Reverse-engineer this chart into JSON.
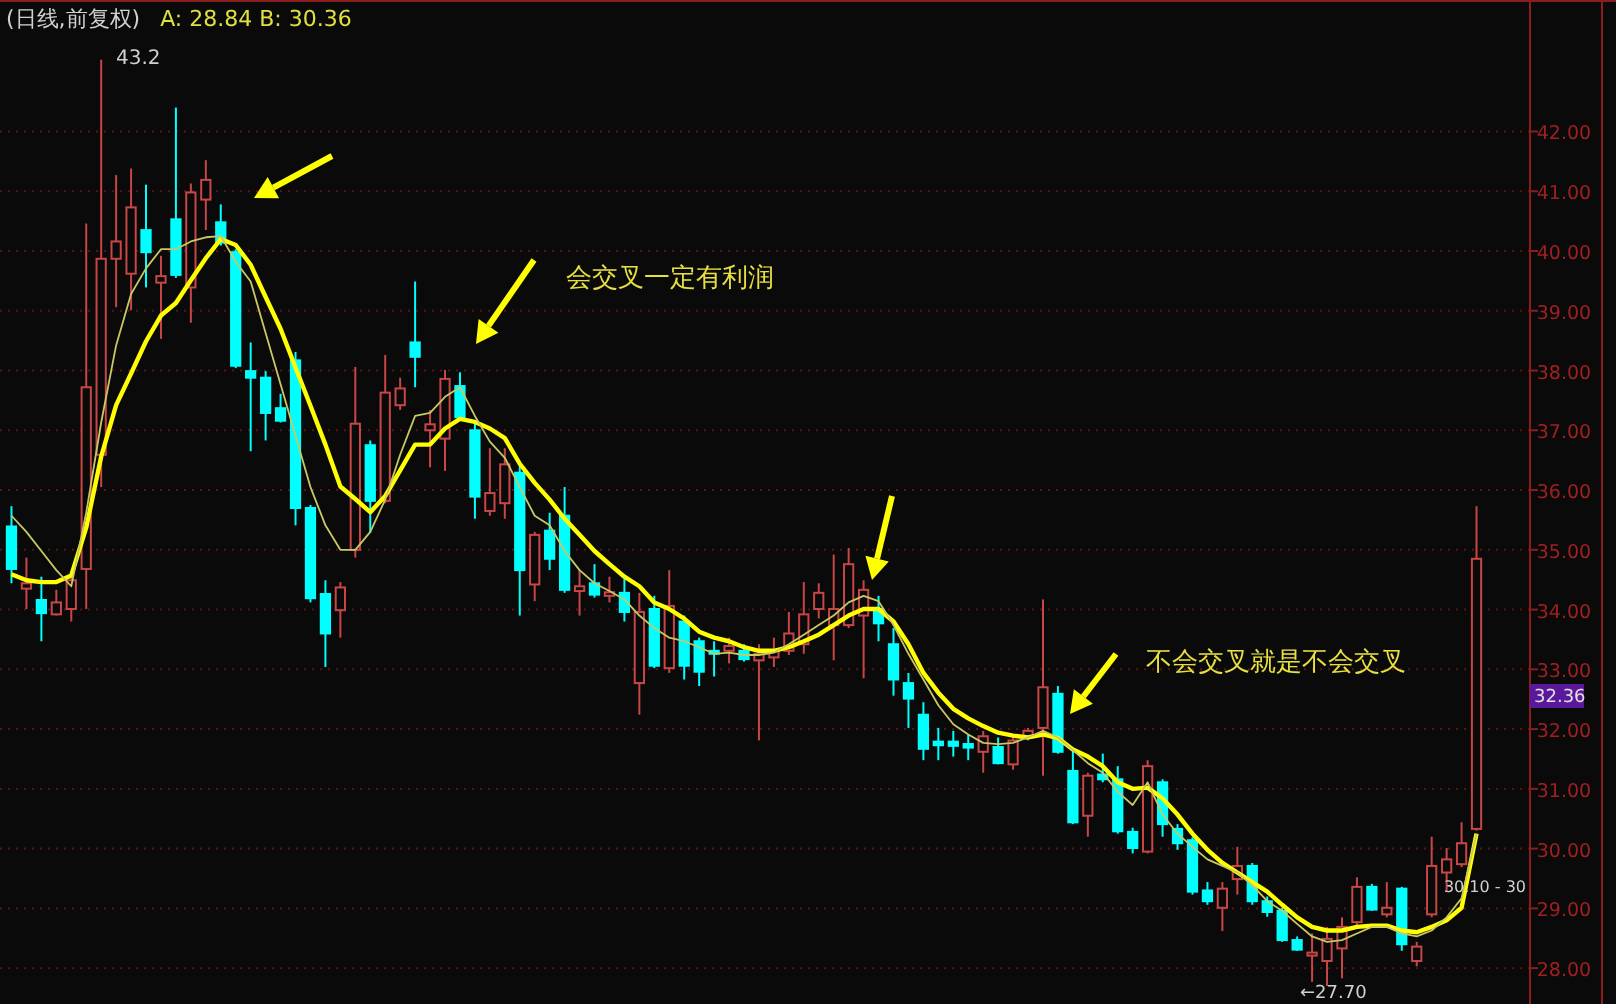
{
  "chart_data": {
    "type": "candlestick",
    "title": "(日线,前复权)",
    "subtitle": "A: 28.84 B: 30.36",
    "categories": [
      null,
      null,
      null,
      null,
      null,
      null,
      null,
      null,
      null,
      null,
      null,
      null,
      null,
      null,
      null,
      null,
      null,
      null,
      null,
      null,
      null,
      null,
      null,
      null,
      null,
      null,
      null,
      null,
      null,
      null,
      null,
      null,
      null,
      null,
      null,
      null,
      null,
      null,
      null,
      null,
      null,
      null,
      null,
      null,
      null,
      null,
      null,
      null,
      null,
      null,
      null,
      null,
      null,
      null,
      null,
      null,
      null,
      null,
      null,
      null,
      null,
      null,
      null,
      null,
      null,
      null,
      null,
      null,
      null,
      null,
      null,
      null,
      null,
      null,
      null,
      null,
      null,
      null,
      null,
      null,
      null,
      null,
      null,
      null,
      null,
      null,
      null,
      null,
      null,
      null,
      null,
      null,
      null,
      null,
      null,
      null,
      null,
      null,
      null
    ],
    "ohlc": [
      [
        35.39,
        35.73,
        34.44,
        34.68
      ],
      [
        34.35,
        34.87,
        34.01,
        34.44
      ],
      [
        34.16,
        34.55,
        33.47,
        33.94
      ],
      [
        33.92,
        34.33,
        33.9,
        34.12
      ],
      [
        34.01,
        34.6,
        33.8,
        34.49
      ],
      [
        34.68,
        40.46,
        34.01,
        37.72
      ],
      [
        36.59,
        43.2,
        36.05,
        39.87
      ],
      [
        39.87,
        41.27,
        39.06,
        40.16
      ],
      [
        39.62,
        41.38,
        39.01,
        40.73
      ],
      [
        40.35,
        41.11,
        39.39,
        39.98
      ],
      [
        39.47,
        39.92,
        38.53,
        39.58
      ],
      [
        40.53,
        42.4,
        39.55,
        39.6
      ],
      [
        39.39,
        41.13,
        38.8,
        40.98
      ],
      [
        40.86,
        41.52,
        40.35,
        41.19
      ],
      [
        40.48,
        40.78,
        40.09,
        40.14
      ],
      [
        39.98,
        40.03,
        38.04,
        38.08
      ],
      [
        37.99,
        38.47,
        36.65,
        37.88
      ],
      [
        37.88,
        37.99,
        36.83,
        37.29
      ],
      [
        37.37,
        37.61,
        37.13,
        37.16
      ],
      [
        38.17,
        38.31,
        35.41,
        35.7
      ],
      [
        35.7,
        35.75,
        34.12,
        34.19
      ],
      [
        34.26,
        34.49,
        33.04,
        33.6
      ],
      [
        33.99,
        34.46,
        33.53,
        34.37
      ],
      [
        35.0,
        38.06,
        34.87,
        37.11
      ],
      [
        36.75,
        36.83,
        35.28,
        35.82
      ],
      [
        35.82,
        38.26,
        35.78,
        37.63
      ],
      [
        37.42,
        37.88,
        37.34,
        37.7
      ],
      [
        38.47,
        39.49,
        37.72,
        38.23
      ],
      [
        37.0,
        37.34,
        36.38,
        37.1
      ],
      [
        36.86,
        38.01,
        36.32,
        37.86
      ],
      [
        37.74,
        37.97,
        37.18,
        37.22
      ],
      [
        37.0,
        37.15,
        35.52,
        35.89
      ],
      [
        35.65,
        36.7,
        35.57,
        35.95
      ],
      [
        35.78,
        36.7,
        35.52,
        36.43
      ],
      [
        36.29,
        36.43,
        33.9,
        34.66
      ],
      [
        34.42,
        35.3,
        34.14,
        35.25
      ],
      [
        35.32,
        35.62,
        34.66,
        34.85
      ],
      [
        35.57,
        36.05,
        34.28,
        34.33
      ],
      [
        34.31,
        34.66,
        33.9,
        34.39
      ],
      [
        34.44,
        34.76,
        34.2,
        34.25
      ],
      [
        34.23,
        34.55,
        34.12,
        34.29
      ],
      [
        34.28,
        34.55,
        33.8,
        33.96
      ],
      [
        32.77,
        34.28,
        32.24,
        33.96
      ],
      [
        34.01,
        34.23,
        33.02,
        33.06
      ],
      [
        33.02,
        34.66,
        32.94,
        34.06
      ],
      [
        33.8,
        33.9,
        32.83,
        33.06
      ],
      [
        33.47,
        33.53,
        32.72,
        32.96
      ],
      [
        33.31,
        33.47,
        32.88,
        33.26
      ],
      [
        33.31,
        33.53,
        33.1,
        33.39
      ],
      [
        33.31,
        33.42,
        33.13,
        33.17
      ],
      [
        33.15,
        33.42,
        31.81,
        33.26
      ],
      [
        33.2,
        33.53,
        33.04,
        33.31
      ],
      [
        33.31,
        33.96,
        33.24,
        33.6
      ],
      [
        33.42,
        34.46,
        33.26,
        33.92
      ],
      [
        34.01,
        34.44,
        33.85,
        34.28
      ],
      [
        33.74,
        34.92,
        33.15,
        34.01
      ],
      [
        33.74,
        35.03,
        33.69,
        34.76
      ],
      [
        33.9,
        34.49,
        32.85,
        34.33
      ],
      [
        34.01,
        34.23,
        33.47,
        33.77
      ],
      [
        33.42,
        33.69,
        32.56,
        32.83
      ],
      [
        32.77,
        32.94,
        32.02,
        32.51
      ],
      [
        32.24,
        32.45,
        31.48,
        31.67
      ],
      [
        31.79,
        32.02,
        31.48,
        31.73
      ],
      [
        31.79,
        31.97,
        31.54,
        31.72
      ],
      [
        31.75,
        31.91,
        31.48,
        31.69
      ],
      [
        31.62,
        31.97,
        31.27,
        31.88
      ],
      [
        31.7,
        31.86,
        31.41,
        31.43
      ],
      [
        31.41,
        31.91,
        31.32,
        31.81
      ],
      [
        31.86,
        32.02,
        31.81,
        31.97
      ],
      [
        32.02,
        34.17,
        31.22,
        32.7
      ],
      [
        32.59,
        32.72,
        31.59,
        31.62
      ],
      [
        31.3,
        31.65,
        30.41,
        30.44
      ],
      [
        30.55,
        31.27,
        30.2,
        31.22
      ],
      [
        31.24,
        31.59,
        31.11,
        31.16
      ],
      [
        31.16,
        31.38,
        30.25,
        30.29
      ],
      [
        30.28,
        30.35,
        29.92,
        30.01
      ],
      [
        29.95,
        31.48,
        29.92,
        31.38
      ],
      [
        31.11,
        31.16,
        30.2,
        30.41
      ],
      [
        30.33,
        30.41,
        29.98,
        30.09
      ],
      [
        30.14,
        30.19,
        29.23,
        29.28
      ],
      [
        29.3,
        29.44,
        29.06,
        29.12
      ],
      [
        29.01,
        29.44,
        28.62,
        29.33
      ],
      [
        29.49,
        30.03,
        29.23,
        29.71
      ],
      [
        29.71,
        29.76,
        29.06,
        29.12
      ],
      [
        29.12,
        29.2,
        28.86,
        28.94
      ],
      [
        28.96,
        29.01,
        28.44,
        28.47
      ],
      [
        28.47,
        28.53,
        28.29,
        28.31
      ],
      [
        28.21,
        28.58,
        27.77,
        28.26
      ],
      [
        28.12,
        28.69,
        27.7,
        28.49
      ],
      [
        28.33,
        28.85,
        27.83,
        28.69
      ],
      [
        28.77,
        29.52,
        28.72,
        29.36
      ],
      [
        29.36,
        29.41,
        28.96,
        28.98
      ],
      [
        28.9,
        29.44,
        28.85,
        29.01
      ],
      [
        29.33,
        29.36,
        28.29,
        28.4
      ],
      [
        28.12,
        28.44,
        28.03,
        28.36
      ],
      [
        28.9,
        30.2,
        28.85,
        29.71
      ],
      [
        29.6,
        30.01,
        29.28,
        29.82
      ],
      [
        29.74,
        30.44,
        29.69,
        30.09
      ],
      [
        30.33,
        35.73,
        30.3,
        34.85
      ]
    ],
    "series": [
      {
        "type": "line",
        "color": "#ffff00",
        "values": [
          34.59,
          34.49,
          34.46,
          34.46,
          34.57,
          35.37,
          36.56,
          37.42,
          37.95,
          38.49,
          38.92,
          39.13,
          39.51,
          39.88,
          40.2,
          40.1,
          39.77,
          39.23,
          38.7,
          38.05,
          37.41,
          36.76,
          36.06,
          35.85,
          35.63,
          35.9,
          36.33,
          36.76,
          36.76,
          37.03,
          37.19,
          37.14,
          37.03,
          36.87,
          36.44,
          36.12,
          35.84,
          35.52,
          35.25,
          34.98,
          34.76,
          34.55,
          34.39,
          34.12,
          34.01,
          33.85,
          33.63,
          33.53,
          33.47,
          33.37,
          33.31,
          33.31,
          33.37,
          33.47,
          33.58,
          33.74,
          33.9,
          34.01,
          34.01,
          33.8,
          33.42,
          32.94,
          32.61,
          32.34,
          32.18,
          32.05,
          31.94,
          31.89,
          31.86,
          31.91,
          31.85,
          31.66,
          31.54,
          31.38,
          31.11,
          31.0,
          31.02,
          30.84,
          30.57,
          30.25,
          29.98,
          29.76,
          29.6,
          29.44,
          29.28,
          29.06,
          28.85,
          28.69,
          28.63,
          28.63,
          28.69,
          28.71,
          28.71,
          28.63,
          28.6,
          28.69,
          28.8,
          29.01,
          30.25
        ]
      },
      {
        "type": "line",
        "color": "#c8c864",
        "values": [
          35.57,
          35.3,
          34.98,
          34.66,
          34.39,
          35.62,
          37.13,
          38.42,
          39.28,
          39.71,
          40.03,
          40.03,
          40.16,
          40.23,
          40.25,
          39.82,
          39.49,
          38.63,
          37.77,
          36.91,
          36.05,
          35.41,
          35.0,
          35.0,
          35.3,
          35.84,
          36.59,
          37.24,
          37.29,
          37.56,
          37.72,
          37.24,
          36.81,
          36.54,
          36.05,
          35.57,
          35.41,
          34.98,
          34.66,
          34.44,
          34.31,
          34.17,
          33.9,
          33.69,
          33.53,
          33.47,
          33.37,
          33.26,
          33.28,
          33.24,
          33.24,
          33.28,
          33.42,
          33.58,
          33.74,
          33.9,
          34.12,
          34.23,
          34.14,
          33.74,
          33.26,
          32.83,
          32.4,
          32.08,
          31.91,
          31.77,
          31.75,
          31.77,
          31.86,
          31.97,
          31.86,
          31.65,
          31.43,
          31.27,
          30.95,
          30.73,
          31.11,
          30.57,
          30.25,
          30.03,
          29.82,
          29.71,
          29.6,
          29.39,
          29.12,
          28.96,
          28.74,
          28.53,
          28.44,
          28.47,
          28.58,
          28.69,
          28.69,
          28.58,
          28.53,
          28.63,
          28.85,
          29.17,
          30.25
        ]
      }
    ],
    "ylim": [
      27.4,
      44.2
    ],
    "yticks": [
      {
        "value": 28,
        "label": "28.00"
      },
      {
        "value": 29,
        "label": "29.00"
      },
      {
        "value": 30,
        "label": "30.00"
      },
      {
        "value": 31,
        "label": "31.00"
      },
      {
        "value": 32,
        "label": "32.00"
      },
      {
        "value": 33,
        "label": "33.00"
      },
      {
        "value": 34,
        "label": "34.00"
      },
      {
        "value": 35,
        "label": "35.00"
      },
      {
        "value": 36,
        "label": "36.00"
      },
      {
        "value": 37,
        "label": "37.00"
      },
      {
        "value": 38,
        "label": "38.00"
      },
      {
        "value": 39,
        "label": "39.00"
      },
      {
        "value": 40,
        "label": "40.00"
      },
      {
        "value": 41,
        "label": "41.00"
      },
      {
        "value": 42,
        "label": "42.00"
      }
    ],
    "grid": "y",
    "annotations": [
      "会交叉一定有利润",
      "不会交叉就是不会交叉",
      "43.2",
      "←27.70",
      "32.36",
      "30.10 - 30"
    ]
  }
}
